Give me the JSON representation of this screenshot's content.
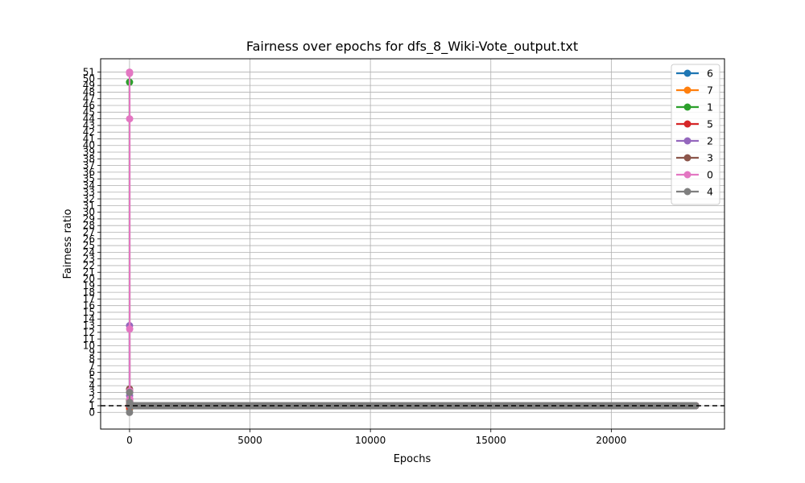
{
  "chart_data": {
    "type": "line",
    "title": "Fairness over epochs for dfs_8_Wiki-Vote_output.txt",
    "xlabel": "Epochs",
    "ylabel": "Fairness ratio",
    "xlim": [
      -1200,
      24700
    ],
    "ylim": [
      -2.5,
      53
    ],
    "x_ticks": [
      0,
      5000,
      10000,
      15000,
      20000
    ],
    "y_ticks": [
      0,
      1,
      2,
      3,
      4,
      5,
      6,
      7,
      8,
      9,
      10,
      11,
      12,
      13,
      14,
      15,
      16,
      17,
      18,
      19,
      20,
      21,
      22,
      23,
      24,
      25,
      26,
      27,
      28,
      29,
      30,
      31,
      32,
      33,
      34,
      35,
      36,
      37,
      38,
      39,
      40,
      41,
      42,
      43,
      44,
      45,
      46,
      47,
      48,
      49,
      50,
      51
    ],
    "grid": true,
    "reference_line": {
      "y": 1,
      "style": "dashed",
      "color": "#000000"
    },
    "legend_position": "top-right",
    "series": [
      {
        "name": "6",
        "color": "#1f77b4",
        "x": [
          0,
          5,
          10,
          20,
          23500
        ],
        "y": [
          0.5,
          1.5,
          1.0,
          1.0,
          1.0
        ]
      },
      {
        "name": "7",
        "color": "#ff7f0e",
        "x": [
          0,
          5,
          10,
          20,
          23500
        ],
        "y": [
          0.6,
          1.3,
          1.0,
          1.0,
          1.0
        ]
      },
      {
        "name": "1",
        "color": "#2ca02c",
        "x": [
          0,
          3,
          6,
          12,
          20,
          23500
        ],
        "y": [
          49.5,
          3.0,
          1.8,
          1.1,
          1.0,
          1.0
        ]
      },
      {
        "name": "5",
        "color": "#d62728",
        "x": [
          0,
          5,
          10,
          20,
          23500
        ],
        "y": [
          0.8,
          1.2,
          1.0,
          1.0,
          1.0
        ]
      },
      {
        "name": "2",
        "color": "#9467bd",
        "x": [
          0,
          3,
          6,
          12,
          20,
          23500
        ],
        "y": [
          13.0,
          2.5,
          1.5,
          1.1,
          1.0,
          1.0
        ]
      },
      {
        "name": "3",
        "color": "#8c564b",
        "x": [
          0,
          3,
          6,
          12,
          20,
          23500
        ],
        "y": [
          3.5,
          1.8,
          1.2,
          1.0,
          1.0,
          1.0
        ]
      },
      {
        "name": "0",
        "color": "#e377c2",
        "x": [
          0,
          2,
          4,
          6,
          9,
          12,
          16,
          20,
          30,
          23500
        ],
        "y": [
          51.0,
          50.8,
          44.0,
          12.5,
          3.2,
          2.0,
          1.5,
          1.0,
          1.0,
          1.0
        ]
      },
      {
        "name": "4",
        "color": "#7f7f7f",
        "x": [
          0,
          3,
          6,
          12,
          20,
          23500
        ],
        "y": [
          0.0,
          3.0,
          1.5,
          1.0,
          1.0,
          1.0
        ]
      }
    ]
  }
}
